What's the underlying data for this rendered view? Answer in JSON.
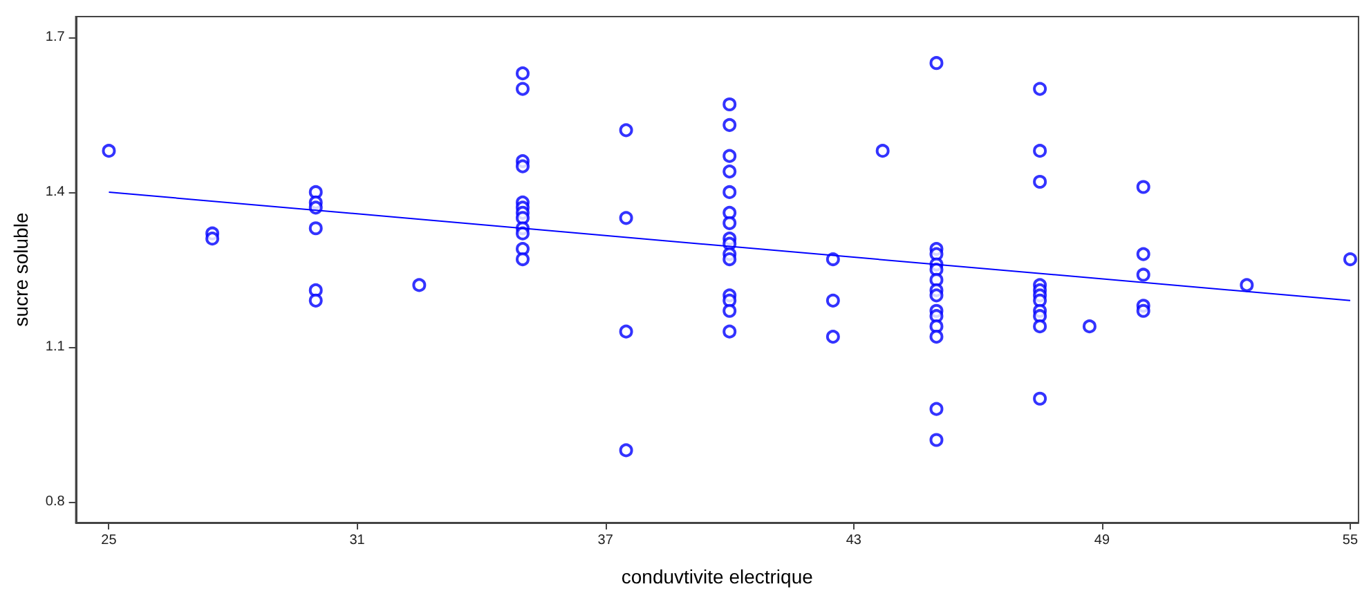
{
  "chart_data": {
    "type": "scatter",
    "xlabel": "conduvtivite electrique",
    "ylabel": "sucre soluble",
    "marker": "circle",
    "grid": false,
    "xlim": [
      24.2,
      55.2
    ],
    "ylim": [
      0.76,
      1.74
    ],
    "xticks": [
      25,
      31,
      37,
      43,
      49,
      55
    ],
    "yticks": [
      0.8,
      1.1,
      1.4,
      1.7
    ],
    "series": [
      {
        "color": "#0000ff",
        "x": [
          25,
          27.5,
          27.5,
          30,
          30,
          30,
          30,
          30,
          30,
          32.5,
          35,
          35,
          35,
          35,
          35,
          35,
          35,
          35,
          35,
          35,
          35,
          35,
          37.5,
          37.5,
          37.5,
          37.5,
          40,
          40,
          40,
          40,
          40,
          40,
          40,
          40,
          40,
          40,
          40,
          40,
          40,
          40,
          40,
          42.5,
          42.5,
          42.5,
          43.7,
          45,
          45,
          45,
          45,
          45,
          45,
          45,
          45,
          45,
          45,
          45,
          45,
          45,
          45,
          47.5,
          47.5,
          47.5,
          47.5,
          47.5,
          47.5,
          47.5,
          47.5,
          47.5,
          47.5,
          47.5,
          48.7,
          50,
          50,
          50,
          50,
          50,
          52.5,
          55
        ],
        "values": [
          1.48,
          1.32,
          1.31,
          1.4,
          1.38,
          1.37,
          1.33,
          1.21,
          1.19,
          1.22,
          1.63,
          1.6,
          1.46,
          1.45,
          1.38,
          1.37,
          1.36,
          1.35,
          1.33,
          1.32,
          1.29,
          1.27,
          1.52,
          1.35,
          1.13,
          0.9,
          1.57,
          1.53,
          1.47,
          1.44,
          1.4,
          1.36,
          1.34,
          1.31,
          1.3,
          1.28,
          1.27,
          1.2,
          1.19,
          1.17,
          1.13,
          1.27,
          1.19,
          1.12,
          1.48,
          1.65,
          1.29,
          1.28,
          1.26,
          1.25,
          1.23,
          1.21,
          1.2,
          1.17,
          1.16,
          1.14,
          1.12,
          0.98,
          0.92,
          1.6,
          1.48,
          1.42,
          1.22,
          1.21,
          1.2,
          1.19,
          1.17,
          1.16,
          1.14,
          1.0,
          1.14,
          1.41,
          1.28,
          1.24,
          1.18,
          1.17,
          1.22,
          1.27
        ]
      },
      {
        "type": "line",
        "color": "#0000ff",
        "x": [
          25,
          55
        ],
        "values": [
          1.4,
          1.19
        ],
        "marker": "none",
        "line_style": "solid"
      }
    ]
  }
}
